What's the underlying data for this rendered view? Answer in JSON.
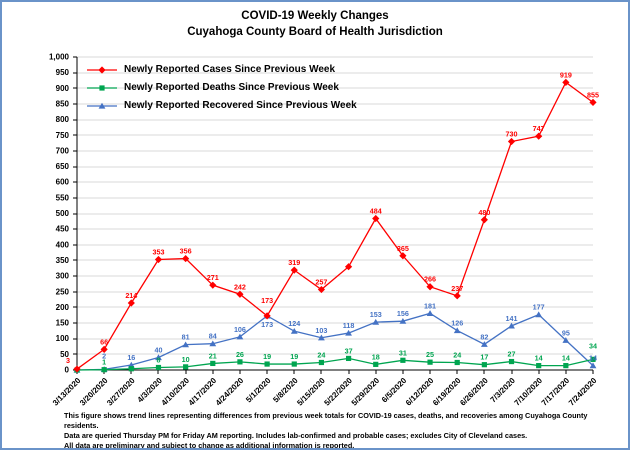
{
  "frame": {
    "border_color": "#6a93c9"
  },
  "title": {
    "line1": "COVID-19 Weekly Changes",
    "line2": "Cuyahoga County Board of Health Jurisdiction"
  },
  "legend": [
    {
      "key": "cases",
      "label": "Newly Reported Cases Since Previous Week",
      "color": "#FF0000",
      "marker": "diamond"
    },
    {
      "key": "deaths",
      "label": "Newly Reported Deaths Since Previous Week",
      "color": "#00A550",
      "marker": "square"
    },
    {
      "key": "recovered",
      "label": "Newly Reported Recovered Since Previous Week",
      "color": "#4472C4",
      "marker": "triangle"
    }
  ],
  "chart_data": {
    "type": "line",
    "title": "COVID-19 Weekly Changes - Cuyahoga County Board of Health Jurisdiction",
    "categories": [
      "3/13/2020",
      "3/20/2020",
      "3/27/2020",
      "4/3/2020",
      "4/10/2020",
      "4/17/2020",
      "4/24/2020",
      "5/1/2020",
      "5/8/2020",
      "5/15/2020",
      "5/22/2020",
      "5/29/2020",
      "6/5/2020",
      "6/12/2020",
      "6/19/2020",
      "6/26/2020",
      "7/3/2020",
      "7/10/2020",
      "7/17/2020",
      "7/24/2020"
    ],
    "series": [
      {
        "key": "cases",
        "name": "Newly Reported Cases Since Previous Week",
        "color": "#FF0000",
        "marker": "diamond",
        "values": [
          3,
          66,
          214,
          353,
          356,
          271,
          242,
          173,
          319,
          257,
          330,
          484,
          365,
          266,
          237,
          480,
          730,
          747,
          919,
          855
        ],
        "labels": [
          "3",
          "66",
          "214",
          "353",
          "356",
          "271",
          "242",
          "173",
          "319",
          "257",
          "",
          "484",
          "365",
          "266",
          "237",
          "480",
          "730",
          "747",
          "919",
          "855"
        ],
        "label_offsets": {
          "0": [
            -9,
            -1
          ],
          "7": [
            0,
            -8
          ]
        }
      },
      {
        "key": "deaths",
        "name": "Newly Reported Deaths Since Previous Week",
        "color": "#00A550",
        "marker": "square",
        "values": [
          0,
          1,
          4,
          8,
          10,
          21,
          26,
          19,
          19,
          24,
          37,
          18,
          31,
          25,
          24,
          17,
          27,
          14,
          14,
          34
        ],
        "labels": [
          "",
          "1",
          "",
          "8",
          "10",
          "21",
          "26",
          "19",
          "19",
          "24",
          "37",
          "18",
          "31",
          "25",
          "24",
          "17",
          "27",
          "14",
          "14",
          "34"
        ],
        "label_offsets": {
          "19": [
            0,
            -6
          ]
        }
      },
      {
        "key": "recovered",
        "name": "Newly Reported Recovered Since Previous Week",
        "color": "#4472C4",
        "marker": "triangle",
        "values": [
          0,
          2,
          16,
          40,
          81,
          84,
          106,
          173,
          124,
          103,
          118,
          153,
          156,
          181,
          126,
          82,
          141,
          177,
          95,
          14
        ],
        "labels": [
          "",
          "2",
          "16",
          "40",
          "81",
          "84",
          "106",
          "173",
          "124",
          "103",
          "118",
          "153",
          "156",
          "181",
          "126",
          "82",
          "141",
          "177",
          "95",
          "14"
        ],
        "label_offsets": {
          "1": [
            0,
            -6
          ],
          "7": [
            0,
            16
          ]
        }
      }
    ],
    "ylim": [
      0,
      1000
    ],
    "ytick_step": 50,
    "ytick_top_label": "1,000",
    "grid": true,
    "grid_color": "#D9D9D9",
    "axis_color": "#000000",
    "legend_position": "top-left-inside"
  },
  "footer": {
    "lines": [
      "This figure shows trend lines representing differences from previous week totals for COVID-19 cases, deaths, and recoveries among Cuyahoga County residents.",
      "Data are queried Thursday PM for Friday AM reporting. Includes lab-confirmed and probable cases; excludes City of Cleveland cases.",
      "All data are preliminary and subject to change as additional information is reported."
    ]
  }
}
